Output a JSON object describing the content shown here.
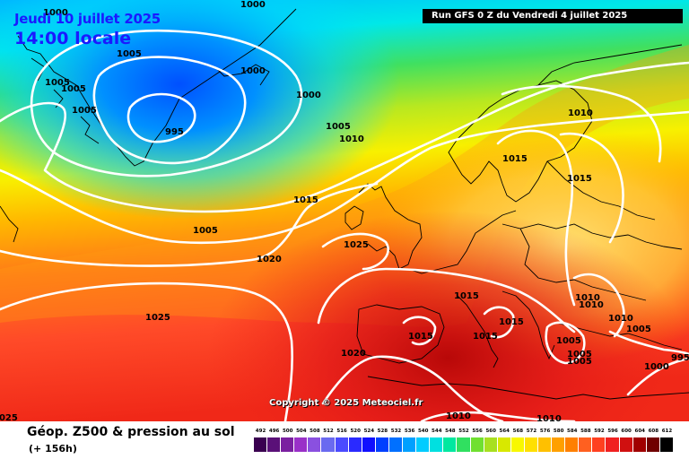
{
  "header": {
    "date_label": "Jeudi 10 juillet 2025",
    "time_label": "14:00 locale",
    "run_label": "Run GFS 0 Z du Vendredi 4 juillet 2025"
  },
  "map": {
    "copyright": "Copyright © 2025 Meteociel.fr",
    "contour_color": "#ffffff",
    "coast_color": "#000000",
    "isobar_labels": [
      "1000",
      "1000",
      "1005",
      "1000",
      "1005",
      "1005",
      "1005",
      "1000",
      "995",
      "1005",
      "1010",
      "1010",
      "1015",
      "1015",
      "1015",
      "1005",
      "1025",
      "1020",
      "1025",
      "1015",
      "1015",
      "1015",
      "1015",
      "1010",
      "1010",
      "1010",
      "1005",
      "1005",
      "1005",
      "1005",
      "995",
      "1000",
      "1020",
      "1010",
      "1010",
      "1025"
    ]
  },
  "legend": {
    "title": "Géop. Z500 & pression au sol",
    "subtitle": "(+ 156h)",
    "scale_values": [
      "492",
      "496",
      "500",
      "504",
      "508",
      "512",
      "516",
      "520",
      "524",
      "528",
      "532",
      "536",
      "540",
      "544",
      "548",
      "552",
      "556",
      "560",
      "564",
      "568",
      "572",
      "576",
      "580",
      "584",
      "588",
      "592",
      "596",
      "600",
      "604",
      "608",
      "612"
    ],
    "scale_colors": [
      "#3a0050",
      "#5a1078",
      "#7a20a0",
      "#9a30c8",
      "#8a50e0",
      "#6a6af0",
      "#4a4aff",
      "#2a2aff",
      "#1010ff",
      "#0040ff",
      "#0070ff",
      "#00a0ff",
      "#00ccff",
      "#00e0e0",
      "#00e8a0",
      "#30e060",
      "#70e030",
      "#a8e020",
      "#d8e800",
      "#f8f800",
      "#ffe000",
      "#ffc000",
      "#ffa000",
      "#ff8000",
      "#ff6020",
      "#ff4020",
      "#f02020",
      "#d01010",
      "#a00000",
      "#700000",
      "#000000"
    ]
  }
}
